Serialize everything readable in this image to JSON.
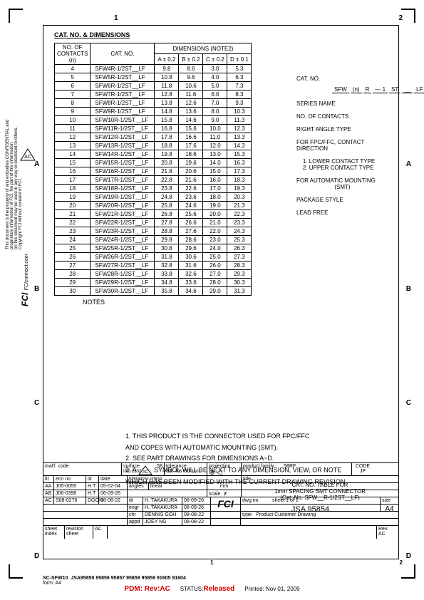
{
  "header": {
    "section_title": "CAT. NO. & DIMENSIONS",
    "zone_top_1": "1",
    "zone_top_2": "2",
    "zone_left_A": "A",
    "zone_left_B": "B",
    "zone_left_C": "C",
    "zone_left_D": "D",
    "zone_right_A": "A",
    "zone_right_B": "B",
    "zone_right_C": "C",
    "zone_right_D": "D"
  },
  "table": {
    "col_contacts_l1": "NO. OF",
    "col_contacts_l2": "CONTACTS",
    "col_contacts_l3": "(n)",
    "col_catno": "CAT. NO.",
    "col_dim_header": "DIMENSIONS (NOTE2)",
    "col_A": "A ± 0.2",
    "col_B": "B ± 0.2",
    "col_C": "C ± 0.2",
    "col_D": "D ± 0.1",
    "rows": [
      {
        "n": "4",
        "cat": "SFW4R-1/2ST__LF",
        "A": "9.8",
        "B": "8.6",
        "C": "3.0",
        "D": "5.3"
      },
      {
        "n": "5",
        "cat": "SFW5R-1/2ST__LF",
        "A": "10.8",
        "B": "9.6",
        "C": "4.0",
        "D": "6.3"
      },
      {
        "n": "6",
        "cat": "SFW6R-1/2ST__LF",
        "A": "11.8",
        "B": "10.6",
        "C": "5.0",
        "D": "7.3"
      },
      {
        "n": "7",
        "cat": "SFW7R-1/2ST__LF",
        "A": "12.8",
        "B": "11.6",
        "C": "6.0",
        "D": "8.3"
      },
      {
        "n": "8",
        "cat": "SFW8R-1/2ST__LF",
        "A": "13.8",
        "B": "12.6",
        "C": "7.0",
        "D": "9.3"
      },
      {
        "n": "9",
        "cat": "SFW9R-1/2ST__LF",
        "A": "14.8",
        "B": "13.6",
        "C": "8.0",
        "D": "10.3"
      },
      {
        "n": "10",
        "cat": "SFW10R-1/2ST__LF",
        "A": "15.8",
        "B": "14.6",
        "C": "9.0",
        "D": "11.3"
      },
      {
        "n": "11",
        "cat": "SFW11R-1/2ST__LF",
        "A": "16.8",
        "B": "15.6",
        "C": "10.0",
        "D": "12.3"
      },
      {
        "n": "12",
        "cat": "SFW12R-1/2ST__LF",
        "A": "17.8",
        "B": "16.6",
        "C": "11.0",
        "D": "13.3"
      },
      {
        "n": "13",
        "cat": "SFW13R-1/2ST__LF",
        "A": "18.8",
        "B": "17.6",
        "C": "12.0",
        "D": "14.3"
      },
      {
        "n": "14",
        "cat": "SFW14R-1/2ST__LF",
        "A": "19.8",
        "B": "18.6",
        "C": "13.0",
        "D": "15.3"
      },
      {
        "n": "15",
        "cat": "SFW15R-1/2ST__LF",
        "A": "20.8",
        "B": "19.6",
        "C": "14.0",
        "D": "16.3"
      },
      {
        "n": "16",
        "cat": "SFW16R-1/2ST__LF",
        "A": "21.8",
        "B": "20.6",
        "C": "15.0",
        "D": "17.3"
      },
      {
        "n": "17",
        "cat": "SFW17R-1/2ST__LF",
        "A": "22.8",
        "B": "21.6",
        "C": "16.0",
        "D": "18.3"
      },
      {
        "n": "18",
        "cat": "SFW18R-1/2ST__LF",
        "A": "23.8",
        "B": "22.6",
        "C": "17.0",
        "D": "19.3"
      },
      {
        "n": "19",
        "cat": "SFW19R-1/2ST__LF",
        "A": "24.8",
        "B": "23.6",
        "C": "18.0",
        "D": "20.3"
      },
      {
        "n": "20",
        "cat": "SFW20R-1/2ST__LF",
        "A": "25.8",
        "B": "24.6",
        "C": "19.0",
        "D": "21.3"
      },
      {
        "n": "21",
        "cat": "SFW21R-1/2ST__LF",
        "A": "26.8",
        "B": "25.6",
        "C": "20.0",
        "D": "22.3"
      },
      {
        "n": "22",
        "cat": "SFW22R-1/2ST__LF",
        "A": "27.8",
        "B": "26.6",
        "C": "21.0",
        "D": "23.3"
      },
      {
        "n": "23",
        "cat": "SFW23R-1/2ST__LF",
        "A": "28.8",
        "B": "27.6",
        "C": "22.0",
        "D": "24.3"
      },
      {
        "n": "24",
        "cat": "SFW24R-1/2ST__LF",
        "A": "29.8",
        "B": "28.6",
        "C": "23.0",
        "D": "25.3"
      },
      {
        "n": "25",
        "cat": "SFW25R-1/2ST__LF",
        "A": "30.8",
        "B": "29.6",
        "C": "24.0",
        "D": "26.3"
      },
      {
        "n": "26",
        "cat": "SFW26R-1/2ST__LF",
        "A": "31.8",
        "B": "30.6",
        "C": "25.0",
        "D": "27.3"
      },
      {
        "n": "27",
        "cat": "SFW27R-1/2ST__LF",
        "A": "32.8",
        "B": "31.6",
        "C": "26.0",
        "D": "28.3"
      },
      {
        "n": "28",
        "cat": "SFW28R-1/2ST__LF",
        "A": "33.8",
        "B": "32.6",
        "C": "27.0",
        "D": "29.3"
      },
      {
        "n": "29",
        "cat": "SFW29R-1/2ST__LF",
        "A": "34.8",
        "B": "33.6",
        "C": "28.0",
        "D": "30.3"
      },
      {
        "n": "30",
        "cat": "SFW30R-1/2ST__LF",
        "A": "35.8",
        "B": "34.6",
        "C": "29.0",
        "D": "31.3"
      }
    ],
    "notes_label": "NOTES"
  },
  "callouts": {
    "cat_label": "CAT. NO.",
    "boxes": {
      "b1": "SFW",
      "b2": "(n)",
      "b3": "R",
      "b4": "— 1",
      "b5": "ST",
      "b6": "__",
      "b7": "LF"
    },
    "items": [
      "SERIES NAME",
      "NO. OF CONTACTS",
      "RIGHT ANGLE TYPE",
      "FOR FPC/FFC, CONTACT\nDIRECTION",
      "    1. LOWER CONTACT TYPE\n    2. UPPER CONTACT TYPE",
      "FOR AUTOMATIC MOUNTING\n                        (SMT)",
      "PACKAGE STYLE",
      "LEAD FREE"
    ]
  },
  "notes": {
    "n1": "1.  THIS PRODUCT IS THE CONNECTOR USED FOR FPC/FFC",
    "n1b": "    AND COPES WITH AUTOMATIC MOUNTING (SMT).",
    "n2": "2.  SEE PART DRAWINGS FOR DIMENSIONS A~D.",
    "n3a": "3.  A ",
    "n3b": " SYMBOL WILL BE NEXT TO ANY DIMENSION, VIEW, OR NOTE",
    "n3c": "    WHICH HAS BEEN MODIFIED WITH THE CURRENT DRAWING REVISION.",
    "ac_symbol": "AC"
  },
  "titleblock": {
    "matl_code": "mat'l.  code",
    "surface_l": "surface",
    "surface_r": "58",
    "surface_sub": "ISO 1302",
    "tolerance_l": "tolerance",
    "tol_r1": "ISO 406",
    "tol_r2": "ISO 1101",
    "projection": "projection",
    "product_family_l": "product family",
    "product_family_v": "58RF",
    "code_l": "CODE",
    "code_v": "JP",
    "ltr": "ltr",
    "ecn": "ecn no",
    "dr_h": "dr",
    "date_h": "date",
    "row1_ltr": "AA",
    "row1_ecn": "J05-0055",
    "row1_dr": "H.T",
    "row1_date": "05-02-04",
    "row2_ltr": "AB",
    "row2_ecn": "J06-0398",
    "row2_dr": "H.T",
    "row2_date": "06-09-26",
    "row3_ltr": "AC",
    "row3_ecn": "S08-0276",
    "row3_dr": "DGOH",
    "row3_date": "08-08-22",
    "tolerances_text": "tolerances unless\notherwise specified",
    "angles_l": "angles",
    "angles_v": "linear",
    "mm": "mm",
    "scale_l": "scale",
    "scale_v": "✗",
    "title_l": "title",
    "title_v1": "CAT. NO. TABLE FOR",
    "title_v2": "1mm SPACING SMT CONNECTOR",
    "title_v3": "(Cat. No. SFW__R-1/2ST__LF)",
    "sig_dr": "dr",
    "sig_dr_n": "H. TAKAKURA",
    "sig_dr_d": "06-09-26",
    "sig_engr": "engr",
    "sig_engr_n": "H. TAKAKURA",
    "sig_engr_d": "06-09-26",
    "sig_chr": "chr",
    "sig_chr_n": "DENNIS GOH",
    "sig_chr_d": "08-08-22",
    "sig_appd": "appd",
    "sig_appd_n": "JOEY NG",
    "sig_appd_d": "08-08-22",
    "dwg_no_l": "dwg no",
    "dwg_no_v": "JSA 95854",
    "sheet_l": "sheet 1 of 1",
    "size_l": "size",
    "size_v": "A4",
    "type_l": "type",
    "type_v": "Product Customer Drawing",
    "sheet_index": "sheet\nindex",
    "revision": "revision\nsheet",
    "rev_ac": "AC",
    "rev_l": "Rev.",
    "rev_v": "AC",
    "bottom_sc": "SC-SFW10",
    "bottom_jsa": "JSA95855 95856 95857 95858 95859 91605 91604",
    "bottom_form": "form: A4",
    "fci_logo": "FCI"
  },
  "footer": {
    "pdm": "PDM: Rev:AC",
    "status_l": "STATUS:",
    "status_v": "Released",
    "printed": "Printed: Nov  01, 2009"
  },
  "side": {
    "confidential": "This document is the property of and embodies CONFIDENTIAL and\nproprietary information of FCI. No part of this information\non this document may be used in any way or disclosed to others.\nCopyright FCI without consent of FCI.",
    "fci_connect": "FCIconnect.com",
    "fci_big": "FCI",
    "ac": "AC"
  },
  "colors": {
    "red": "#d40000",
    "black": "#000000"
  }
}
